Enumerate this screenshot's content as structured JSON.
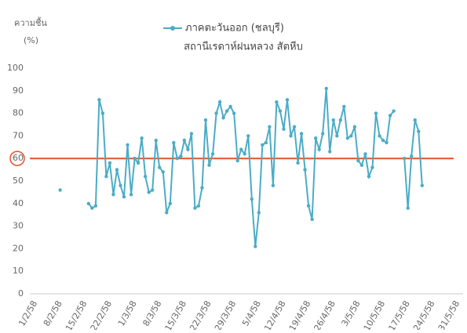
{
  "chart_data": {
    "type": "line",
    "title": "สถานีเรดาห์ฝนหลวง สัตหีบ",
    "y_label": "ความชื้น",
    "y_unit": "(%)",
    "categories": [
      "1/2/58",
      null,
      null,
      null,
      null,
      null,
      null,
      "8/2/58",
      null,
      null,
      null,
      null,
      null,
      null,
      "15/2/58",
      null,
      null,
      null,
      null,
      null,
      null,
      "22/2/58",
      null,
      null,
      null,
      null,
      null,
      null,
      "1/3/58",
      null,
      null,
      null,
      null,
      null,
      null,
      "8/3/58",
      null,
      null,
      null,
      null,
      null,
      null,
      "15/3/58",
      null,
      null,
      null,
      null,
      null,
      null,
      "22/3/58",
      null,
      null,
      null,
      null,
      null,
      null,
      "29/3/58",
      null,
      null,
      null,
      null,
      null,
      null,
      "5/4/58",
      null,
      null,
      null,
      null,
      null,
      null,
      "12/4/58",
      null,
      null,
      null,
      null,
      null,
      null,
      "19/4/58",
      null,
      null,
      null,
      null,
      null,
      null,
      "26/4/58",
      null,
      null,
      null,
      null,
      null,
      null,
      "3/5/58",
      null,
      null,
      null,
      null,
      null,
      null,
      "10/5/58",
      null,
      null,
      null,
      null,
      null,
      null,
      "17/5/58",
      null,
      null,
      null,
      null,
      null,
      null,
      "24/5/58",
      null,
      null,
      null,
      null,
      null,
      null,
      "31/5/58"
    ],
    "series": [
      {
        "name": "ภาคตะวันออก (ชลบุรี)",
        "color": "#4bacc6",
        "values": [
          null,
          null,
          null,
          null,
          null,
          null,
          null,
          46,
          null,
          null,
          null,
          null,
          null,
          null,
          null,
          40,
          38,
          39,
          86,
          80,
          52,
          58,
          44,
          55,
          48,
          43,
          66,
          44,
          60,
          58,
          69,
          52,
          45,
          46,
          68,
          56,
          54,
          36,
          40,
          67,
          60,
          61,
          68,
          64,
          71,
          38,
          39,
          47,
          77,
          57,
          62,
          80,
          85,
          78,
          81,
          83,
          80,
          59,
          64,
          62,
          70,
          42,
          21,
          36,
          66,
          67,
          74,
          48,
          85,
          81,
          73,
          86,
          70,
          74,
          58,
          71,
          55,
          39,
          33,
          69,
          64,
          71,
          91,
          63,
          77,
          70,
          77,
          83,
          69,
          70,
          74,
          59,
          57,
          62,
          52,
          56,
          80,
          70,
          68,
          67,
          79,
          81,
          null,
          null,
          60,
          38,
          61,
          77,
          72,
          48,
          null,
          null,
          null,
          null,
          null,
          null,
          null,
          null,
          null,
          null
        ]
      }
    ],
    "ylim": [
      0,
      100
    ],
    "yticks": [
      0,
      10,
      20,
      30,
      40,
      50,
      60,
      70,
      80,
      90,
      100
    ],
    "grid": false,
    "threshold": 60,
    "threshold_color": "#e8502a",
    "legend": "top"
  }
}
